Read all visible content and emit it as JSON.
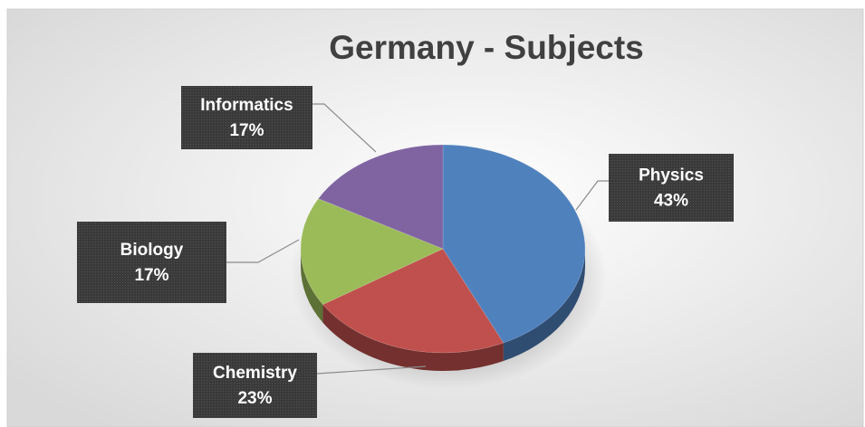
{
  "chart_data": {
    "type": "pie",
    "title": "Germany - Subjects",
    "categories": [
      "Physics",
      "Chemistry",
      "Biology",
      "Informatics"
    ],
    "values": [
      43,
      23,
      17,
      17
    ],
    "value_labels": [
      "43%",
      "23%",
      "17%",
      "17%"
    ],
    "colors": [
      "#4f81bd",
      "#c0504d",
      "#9bbb59",
      "#8064a2"
    ]
  }
}
